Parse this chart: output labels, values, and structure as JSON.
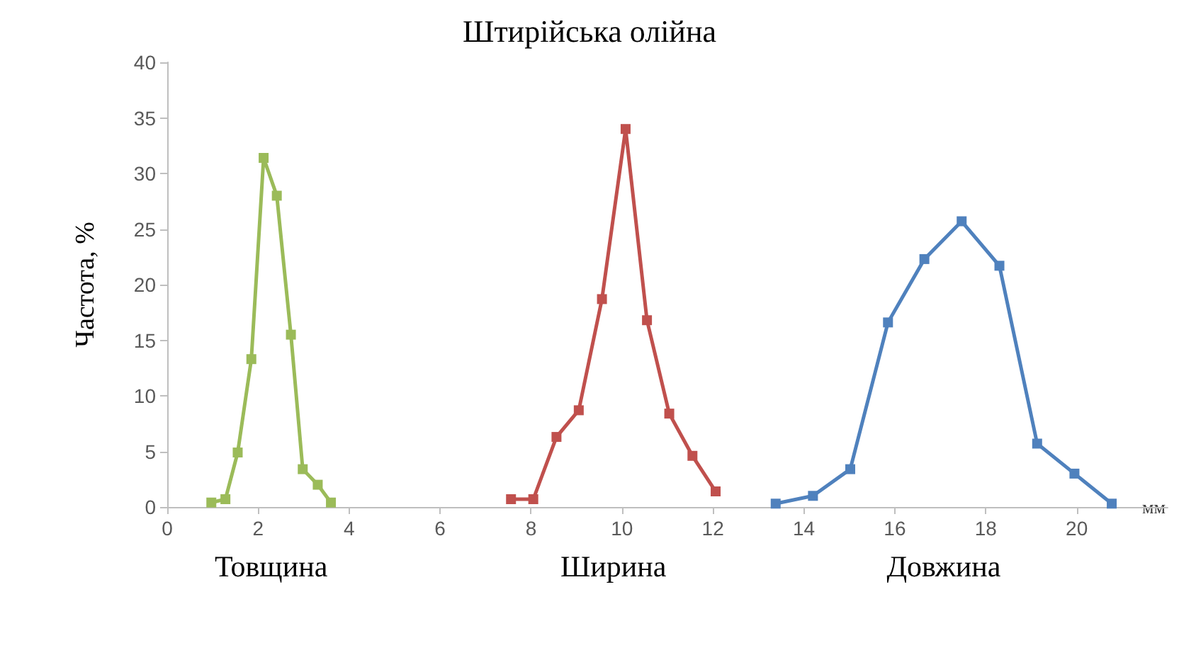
{
  "chart_data": {
    "type": "line",
    "title": "Штирійська олійна",
    "xlabel": "мм",
    "ylabel": "Частота, %",
    "xlim": [
      0,
      22
    ],
    "xticks": [
      0,
      2,
      4,
      6,
      8,
      10,
      12,
      14,
      16,
      18,
      20
    ],
    "ylim": [
      0,
      40
    ],
    "yticks": [
      0,
      5,
      10,
      15,
      20,
      25,
      30,
      35,
      40
    ],
    "grid": false,
    "legend": false,
    "marker": "square",
    "line_style": "solid",
    "series": [
      {
        "name": "Товщина",
        "color": "#9bbb59",
        "x": [
          0.97,
          1.28,
          1.55,
          1.85,
          2.12,
          2.41,
          2.72,
          2.98,
          3.31,
          3.6
        ],
        "values": [
          0.4,
          0.7,
          4.9,
          13.3,
          31.4,
          28.0,
          15.5,
          3.4,
          2.0,
          0.4
        ]
      },
      {
        "name": "Ширина",
        "color": "#c0504d",
        "x": [
          7.56,
          8.05,
          8.56,
          9.05,
          9.56,
          10.08,
          10.55,
          11.04,
          11.55,
          12.06
        ],
        "values": [
          0.7,
          0.7,
          6.3,
          8.7,
          18.7,
          34.0,
          16.8,
          8.4,
          4.6,
          1.4
        ]
      },
      {
        "name": "Довжина",
        "color": "#4f81bd",
        "x": [
          13.38,
          14.2,
          15.02,
          15.85,
          16.65,
          17.47,
          18.3,
          19.13,
          19.95,
          20.77
        ],
        "values": [
          0.3,
          1.0,
          3.4,
          16.6,
          22.3,
          25.7,
          21.7,
          5.7,
          3.0,
          0.3
        ]
      }
    ]
  }
}
